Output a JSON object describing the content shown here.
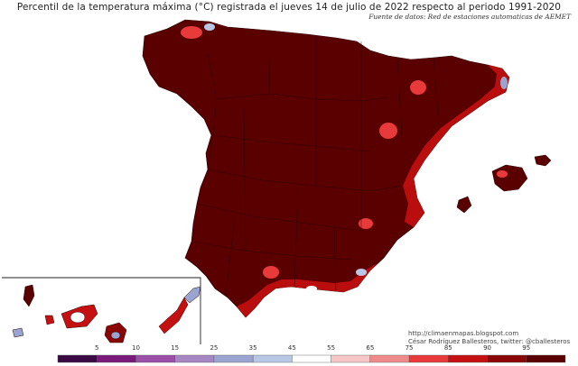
{
  "header": {
    "title": "Percentil de la temperatura máxima (°C) registrada el jueves 14 de julio de 2022 respecto al periodo 1991-2020",
    "source": "Fuente de datos: Red de estaciones automaticas de AEMET"
  },
  "credits": {
    "url": "http://climaenmapas.blogspot.com",
    "author": "César Rodríguez Ballesteros, twitter: @cballesteros"
  },
  "legend": {
    "labels": [
      "5",
      "10",
      "15",
      "25",
      "35",
      "45",
      "55",
      "65",
      "75",
      "85",
      "90",
      "95"
    ],
    "colors": [
      "#3b0a45",
      "#7a1a7a",
      "#9b4fa8",
      "#a786c4",
      "#9aa4d0",
      "#b9c7e6",
      "#ffffff",
      "#f7c6c6",
      "#f08a8a",
      "#e83a3a",
      "#c41010",
      "#8a0505",
      "#5a0000"
    ]
  },
  "colors": {
    "dominant": "#5a0000",
    "coast_warm": "#c41010",
    "hot_spot": "#e83a3a",
    "cool_spot": "#9aa4d0"
  }
}
